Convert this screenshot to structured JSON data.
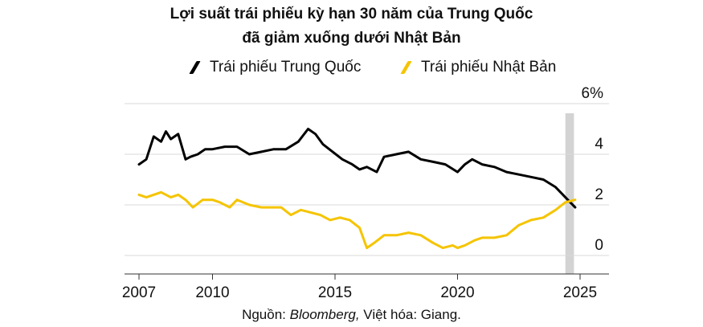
{
  "title_line1": "Lợi suất trái phiếu kỳ hạn 30 năm của Trung Quốc",
  "title_line2": "đã giảm xuống dưới Nhật Bản",
  "source": {
    "prefix": "Nguồn: ",
    "name": "Bloomberg,",
    "suffix": " Việt hóa: Giang."
  },
  "colors": {
    "china": "#000000",
    "japan": "#f5c400",
    "band": "#d3d3d3",
    "grid": "#d9d9d9"
  },
  "chart_data": {
    "type": "line",
    "title": "Lợi suất trái phiếu kỳ hạn 30 năm của Trung Quốc đã giảm xuống dưới Nhật Bản",
    "xlim": [
      2007,
      2025
    ],
    "ylim": [
      -0.5,
      6
    ],
    "x_ticks": [
      "2007",
      "2010",
      "2015",
      "2020",
      "2025"
    ],
    "x_tick_values": [
      2007,
      2010,
      2015,
      2020,
      2025
    ],
    "y_ticks": [
      "0",
      "2",
      "4",
      "6%"
    ],
    "y_tick_values": [
      0,
      2,
      4,
      6
    ],
    "grid": "horizontal",
    "legend_placement": "top",
    "shaded_period": [
      2024.4,
      2024.75
    ],
    "series": [
      {
        "name": "Trái phiếu Trung Quốc",
        "color": "#000000",
        "x": [
          2007.0,
          2007.3,
          2007.6,
          2007.9,
          2008.1,
          2008.3,
          2008.6,
          2008.9,
          2009.1,
          2009.4,
          2009.7,
          2010.0,
          2010.5,
          2011.0,
          2011.5,
          2012.0,
          2012.5,
          2013.0,
          2013.5,
          2013.9,
          2014.2,
          2014.5,
          2014.9,
          2015.3,
          2015.7,
          2016.0,
          2016.3,
          2016.7,
          2017.0,
          2017.5,
          2018.0,
          2018.5,
          2019.0,
          2019.5,
          2020.0,
          2020.3,
          2020.6,
          2021.0,
          2021.5,
          2022.0,
          2022.5,
          2023.0,
          2023.5,
          2024.0,
          2024.4,
          2024.8
        ],
        "y": [
          3.6,
          3.8,
          4.7,
          4.5,
          4.9,
          4.6,
          4.8,
          3.8,
          3.9,
          4.0,
          4.2,
          4.2,
          4.3,
          4.3,
          4.0,
          4.1,
          4.2,
          4.2,
          4.5,
          5.0,
          4.8,
          4.4,
          4.1,
          3.8,
          3.6,
          3.4,
          3.5,
          3.3,
          3.9,
          4.0,
          4.1,
          3.8,
          3.7,
          3.6,
          3.3,
          3.6,
          3.8,
          3.6,
          3.5,
          3.3,
          3.2,
          3.1,
          3.0,
          2.7,
          2.3,
          1.9
        ]
      },
      {
        "name": "Trái phiếu Nhật Bản",
        "color": "#f5c400",
        "x": [
          2007.0,
          2007.3,
          2007.6,
          2007.9,
          2008.3,
          2008.6,
          2008.9,
          2009.2,
          2009.6,
          2010.0,
          2010.3,
          2010.7,
          2011.0,
          2011.5,
          2012.0,
          2012.4,
          2012.8,
          2013.2,
          2013.6,
          2014.0,
          2014.4,
          2014.8,
          2015.2,
          2015.6,
          2016.0,
          2016.3,
          2016.6,
          2017.0,
          2017.5,
          2018.0,
          2018.5,
          2019.0,
          2019.4,
          2019.8,
          2020.0,
          2020.3,
          2020.7,
          2021.0,
          2021.5,
          2022.0,
          2022.5,
          2023.0,
          2023.5,
          2024.0,
          2024.4,
          2024.8
        ],
        "y": [
          2.4,
          2.3,
          2.4,
          2.5,
          2.3,
          2.4,
          2.2,
          1.9,
          2.2,
          2.2,
          2.1,
          1.9,
          2.2,
          2.0,
          1.9,
          1.9,
          1.9,
          1.6,
          1.8,
          1.7,
          1.6,
          1.4,
          1.5,
          1.4,
          1.1,
          0.3,
          0.5,
          0.8,
          0.8,
          0.9,
          0.8,
          0.5,
          0.3,
          0.4,
          0.3,
          0.4,
          0.6,
          0.7,
          0.7,
          0.8,
          1.2,
          1.4,
          1.5,
          1.8,
          2.1,
          2.2
        ]
      }
    ]
  }
}
